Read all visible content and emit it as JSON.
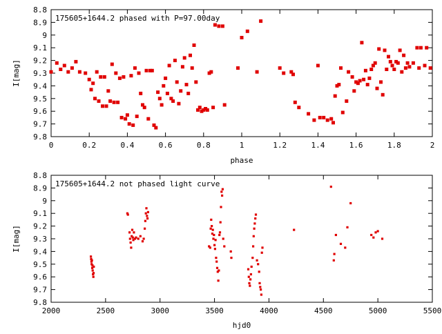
{
  "chart_data": [
    {
      "type": "scatter",
      "title": "175605+1644.2 phased with P=97.00day",
      "xlabel": "phase",
      "ylabel": "I[mag]",
      "xlim": [
        0,
        2
      ],
      "ylim": [
        8.8,
        9.8
      ],
      "y_inverted": true,
      "grid": false,
      "marker_color": "#e00000",
      "xticks": [
        0,
        0.2,
        0.4,
        0.6,
        0.8,
        1,
        1.2,
        1.4,
        1.6,
        1.8,
        2
      ],
      "xtick_labels": [
        "0",
        "0.2",
        "0.4",
        "0.6",
        "0.8",
        "1",
        "1.2",
        "1.4",
        "1.6",
        "1.8",
        "2"
      ],
      "yticks": [
        8.8,
        8.9,
        9.0,
        9.1,
        9.2,
        9.3,
        9.4,
        9.5,
        9.6,
        9.7,
        9.8
      ],
      "ytick_labels": [
        "8.8",
        "8.9",
        "9",
        "9.1",
        "9.2",
        "9.3",
        "9.4",
        "9.5",
        "9.6",
        "9.7",
        "9.8"
      ],
      "series": [
        {
          "points": [
            [
              0.0,
              9.29
            ],
            [
              0.03,
              9.22
            ],
            [
              0.05,
              9.27
            ],
            [
              0.07,
              9.24
            ],
            [
              0.09,
              9.29
            ],
            [
              0.11,
              9.26
            ],
            [
              0.13,
              9.21
            ],
            [
              0.15,
              9.29
            ],
            [
              0.18,
              9.3
            ],
            [
              0.2,
              9.35
            ],
            [
              0.21,
              9.43
            ],
            [
              0.22,
              9.38
            ],
            [
              0.23,
              9.5
            ],
            [
              0.24,
              9.29
            ],
            [
              0.25,
              9.52
            ],
            [
              0.26,
              9.33
            ],
            [
              0.27,
              9.56
            ],
            [
              0.28,
              9.33
            ],
            [
              0.29,
              9.56
            ],
            [
              0.3,
              9.44
            ],
            [
              0.31,
              9.52
            ],
            [
              0.32,
              9.23
            ],
            [
              0.33,
              9.53
            ],
            [
              0.34,
              9.3
            ],
            [
              0.35,
              9.53
            ],
            [
              0.36,
              9.34
            ],
            [
              0.37,
              9.65
            ],
            [
              0.38,
              9.33
            ],
            [
              0.39,
              9.66
            ],
            [
              0.4,
              9.63
            ],
            [
              0.41,
              9.7
            ],
            [
              0.42,
              9.32
            ],
            [
              0.43,
              9.71
            ],
            [
              0.44,
              9.26
            ],
            [
              0.45,
              9.64
            ],
            [
              0.46,
              9.3
            ],
            [
              0.47,
              9.46
            ],
            [
              0.48,
              9.55
            ],
            [
              0.49,
              9.57
            ],
            [
              0.5,
              9.28
            ],
            [
              0.51,
              9.66
            ],
            [
              0.52,
              9.28
            ],
            [
              0.53,
              9.28
            ],
            [
              0.54,
              9.71
            ],
            [
              0.55,
              9.73
            ],
            [
              0.56,
              9.45
            ],
            [
              0.57,
              9.5
            ],
            [
              0.58,
              9.55
            ],
            [
              0.59,
              9.4
            ],
            [
              0.6,
              9.34
            ],
            [
              0.61,
              9.46
            ],
            [
              0.62,
              9.24
            ],
            [
              0.63,
              9.5
            ],
            [
              0.64,
              9.52
            ],
            [
              0.65,
              9.2
            ],
            [
              0.66,
              9.37
            ],
            [
              0.67,
              9.54
            ],
            [
              0.68,
              9.44
            ],
            [
              0.69,
              9.25
            ],
            [
              0.7,
              9.18
            ],
            [
              0.71,
              9.39
            ],
            [
              0.72,
              9.46
            ],
            [
              0.73,
              9.16
            ],
            [
              0.74,
              9.26
            ],
            [
              0.75,
              9.08
            ],
            [
              0.76,
              9.37
            ],
            [
              0.77,
              9.59
            ],
            [
              0.78,
              9.57
            ],
            [
              0.79,
              9.6
            ],
            [
              0.8,
              9.59
            ],
            [
              0.81,
              9.58
            ],
            [
              0.82,
              9.59
            ],
            [
              0.83,
              9.3
            ],
            [
              0.84,
              9.29
            ],
            [
              0.85,
              9.57
            ],
            [
              0.86,
              8.92
            ],
            [
              0.88,
              8.93
            ],
            [
              0.9,
              8.93
            ],
            [
              0.91,
              9.55
            ],
            [
              0.98,
              9.26
            ],
            [
              1.0,
              9.02
            ],
            [
              1.03,
              8.97
            ],
            [
              1.08,
              9.29
            ],
            [
              1.1,
              8.89
            ],
            [
              1.2,
              9.26
            ],
            [
              1.22,
              9.3
            ],
            [
              1.26,
              9.29
            ],
            [
              1.27,
              9.31
            ],
            [
              1.28,
              9.53
            ],
            [
              1.3,
              9.57
            ],
            [
              1.35,
              9.62
            ],
            [
              1.38,
              9.67
            ],
            [
              1.4,
              9.24
            ],
            [
              1.41,
              9.65
            ],
            [
              1.43,
              9.65
            ],
            [
              1.45,
              9.67
            ],
            [
              1.47,
              9.66
            ],
            [
              1.48,
              9.69
            ],
            [
              1.49,
              9.48
            ],
            [
              1.5,
              9.4
            ],
            [
              1.51,
              9.39
            ],
            [
              1.52,
              9.26
            ],
            [
              1.53,
              9.61
            ],
            [
              1.55,
              9.52
            ],
            [
              1.56,
              9.29
            ],
            [
              1.58,
              9.33
            ],
            [
              1.59,
              9.44
            ],
            [
              1.6,
              9.37
            ],
            [
              1.61,
              9.38
            ],
            [
              1.62,
              9.36
            ],
            [
              1.63,
              9.06
            ],
            [
              1.64,
              9.35
            ],
            [
              1.65,
              9.28
            ],
            [
              1.66,
              9.39
            ],
            [
              1.67,
              9.34
            ],
            [
              1.68,
              9.27
            ],
            [
              1.69,
              9.24
            ],
            [
              1.7,
              9.22
            ],
            [
              1.71,
              9.42
            ],
            [
              1.72,
              9.11
            ],
            [
              1.73,
              9.37
            ],
            [
              1.74,
              9.47
            ],
            [
              1.75,
              9.12
            ],
            [
              1.76,
              9.27
            ],
            [
              1.77,
              9.17
            ],
            [
              1.78,
              9.21
            ],
            [
              1.79,
              9.24
            ],
            [
              1.8,
              9.27
            ],
            [
              1.81,
              9.21
            ],
            [
              1.82,
              9.22
            ],
            [
              1.83,
              9.12
            ],
            [
              1.84,
              9.29
            ],
            [
              1.85,
              9.16
            ],
            [
              1.86,
              9.26
            ],
            [
              1.87,
              9.22
            ],
            [
              1.88,
              9.25
            ],
            [
              1.9,
              9.22
            ],
            [
              1.92,
              9.1
            ],
            [
              1.93,
              9.26
            ],
            [
              1.94,
              9.1
            ],
            [
              1.96,
              9.24
            ],
            [
              1.97,
              9.1
            ],
            [
              1.99,
              9.26
            ]
          ]
        }
      ]
    },
    {
      "type": "scatter",
      "title": "175605+1644.2 not phased light curve",
      "xlabel": "hjd0",
      "ylabel": "I[mag]",
      "xlim": [
        2000,
        5500
      ],
      "ylim": [
        8.8,
        9.8
      ],
      "y_inverted": true,
      "grid": false,
      "marker_color": "#e00000",
      "xticks": [
        2000,
        2500,
        3000,
        3500,
        4000,
        4500,
        5000,
        5500
      ],
      "xtick_labels": [
        "2000",
        "2500",
        "3000",
        "3500",
        "4000",
        "4500",
        "5000",
        "5500"
      ],
      "yticks": [
        8.8,
        8.9,
        9.0,
        9.1,
        9.2,
        9.3,
        9.4,
        9.5,
        9.6,
        9.7,
        9.8
      ],
      "ytick_labels": [
        "8.8",
        "8.9",
        "9",
        "9.1",
        "9.2",
        "9.3",
        "9.4",
        "9.5",
        "9.6",
        "9.7",
        "9.8"
      ],
      "series": [
        {
          "points": [
            [
              2365,
              9.44
            ],
            [
              2368,
              9.46
            ],
            [
              2370,
              9.48
            ],
            [
              2372,
              9.5
            ],
            [
              2375,
              9.47
            ],
            [
              2378,
              9.53
            ],
            [
              2380,
              9.51
            ],
            [
              2382,
              9.55
            ],
            [
              2385,
              9.58
            ],
            [
              2388,
              9.6
            ],
            [
              2390,
              9.57
            ],
            [
              2392,
              9.52
            ],
            [
              2700,
              9.1
            ],
            [
              2705,
              9.11
            ],
            [
              2720,
              9.25
            ],
            [
              2725,
              9.3
            ],
            [
              2730,
              9.33
            ],
            [
              2735,
              9.37
            ],
            [
              2740,
              9.28
            ],
            [
              2745,
              9.23
            ],
            [
              2750,
              9.29
            ],
            [
              2755,
              9.31
            ],
            [
              2760,
              9.25
            ],
            [
              2770,
              9.3
            ],
            [
              2780,
              9.29
            ],
            [
              2800,
              9.3
            ],
            [
              2820,
              9.28
            ],
            [
              2840,
              9.32
            ],
            [
              2850,
              9.3
            ],
            [
              2860,
              9.22
            ],
            [
              2865,
              9.16
            ],
            [
              2870,
              9.1
            ],
            [
              2875,
              9.06
            ],
            [
              2880,
              9.12
            ],
            [
              2885,
              9.14
            ],
            [
              2890,
              9.09
            ],
            [
              3450,
              9.36
            ],
            [
              3460,
              9.37
            ],
            [
              3465,
              9.22
            ],
            [
              3470,
              9.15
            ],
            [
              3475,
              9.2
            ],
            [
              3480,
              9.26
            ],
            [
              3485,
              9.23
            ],
            [
              3490,
              9.3
            ],
            [
              3495,
              9.27
            ],
            [
              3500,
              9.35
            ],
            [
              3505,
              9.38
            ],
            [
              3510,
              9.31
            ],
            [
              3515,
              9.45
            ],
            [
              3520,
              9.48
            ],
            [
              3525,
              9.53
            ],
            [
              3530,
              9.56
            ],
            [
              3535,
              9.63
            ],
            [
              3540,
              9.55
            ],
            [
              3545,
              9.27
            ],
            [
              3550,
              9.25
            ],
            [
              3555,
              9.17
            ],
            [
              3560,
              9.05
            ],
            [
              3565,
              8.93
            ],
            [
              3570,
              8.96
            ],
            [
              3575,
              8.91
            ],
            [
              3580,
              9.3
            ],
            [
              3590,
              9.36
            ],
            [
              3650,
              9.4
            ],
            [
              3655,
              9.45
            ],
            [
              3810,
              9.54
            ],
            [
              3815,
              9.6
            ],
            [
              3820,
              9.65
            ],
            [
              3825,
              9.67
            ],
            [
              3830,
              9.62
            ],
            [
              3835,
              9.58
            ],
            [
              3840,
              9.52
            ],
            [
              3850,
              9.45
            ],
            [
              3855,
              9.36
            ],
            [
              3860,
              9.28
            ],
            [
              3865,
              9.22
            ],
            [
              3870,
              9.18
            ],
            [
              3875,
              9.14
            ],
            [
              3880,
              9.11
            ],
            [
              3890,
              9.47
            ],
            [
              3900,
              9.5
            ],
            [
              3910,
              9.56
            ],
            [
              3915,
              9.65
            ],
            [
              3920,
              9.68
            ],
            [
              3925,
              9.7
            ],
            [
              3930,
              9.74
            ],
            [
              3935,
              9.41
            ],
            [
              3940,
              9.37
            ],
            [
              4230,
              9.23
            ],
            [
              4570,
              8.89
            ],
            [
              4595,
              9.47
            ],
            [
              4600,
              9.42
            ],
            [
              4615,
              9.27
            ],
            [
              4660,
              9.34
            ],
            [
              4700,
              9.37
            ],
            [
              4720,
              9.21
            ],
            [
              4750,
              9.02
            ],
            [
              4940,
              9.27
            ],
            [
              4960,
              9.29
            ],
            [
              4980,
              9.25
            ],
            [
              5000,
              9.24
            ],
            [
              5040,
              9.3
            ]
          ]
        }
      ]
    }
  ]
}
